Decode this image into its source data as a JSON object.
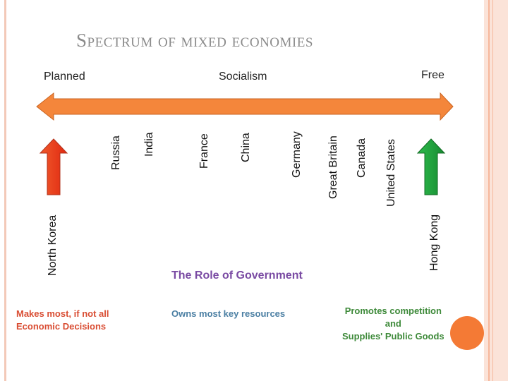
{
  "title": "Spectrum of mixed economies",
  "spectrum": {
    "left_label": "Planned",
    "center_label": "Socialism",
    "right_label": "Free"
  },
  "countries": [
    "North Korea",
    "Russia",
    "India",
    "France",
    "China",
    "Germany",
    "Great Britain",
    "Canada",
    "United States",
    "Hong Kong"
  ],
  "role": {
    "title": "The Role of Government",
    "planned_line1": "Makes most, if not all",
    "planned_line2": "Economic Decisions",
    "socialism": "Owns most key resources",
    "free_line1": "Promotes competition",
    "free_line2": "and",
    "free_line3": "Supplies' Public Goods"
  },
  "colors": {
    "spectrum_arrow": "#f4863b",
    "planned_arrow": "#e83a1f",
    "free_arrow": "#1ea33d"
  }
}
